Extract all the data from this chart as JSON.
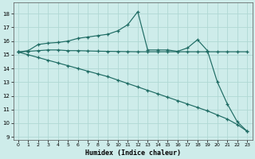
{
  "xlabel": "Humidex (Indice chaleur)",
  "xlim": [
    -0.5,
    23.5
  ],
  "ylim": [
    8.8,
    18.8
  ],
  "yticks": [
    9,
    10,
    11,
    12,
    13,
    14,
    15,
    16,
    17,
    18
  ],
  "xticks": [
    0,
    1,
    2,
    3,
    4,
    5,
    6,
    7,
    8,
    9,
    10,
    11,
    12,
    13,
    14,
    15,
    16,
    17,
    18,
    19,
    20,
    21,
    22,
    23
  ],
  "bg_color": "#ceecea",
  "grid_color": "#b0d8d4",
  "line_color": "#1e6b63",
  "series": [
    {
      "x": [
        0,
        1,
        2,
        3,
        4,
        5,
        6,
        7,
        8,
        9,
        10,
        11,
        12,
        13,
        14,
        15,
        16,
        17,
        18,
        19,
        20,
        21,
        22,
        23
      ],
      "y": [
        15.2,
        15.3,
        15.75,
        15.85,
        15.9,
        16.0,
        16.2,
        16.3,
        16.4,
        16.5,
        16.75,
        17.2,
        18.15,
        15.35,
        15.35,
        15.35,
        15.25,
        15.5,
        16.1,
        15.3,
        13.0,
        11.4,
        10.1,
        9.4
      ]
    },
    {
      "x": [
        0,
        1,
        2,
        3,
        4,
        5,
        6,
        7,
        8,
        9,
        10,
        11,
        12,
        13,
        14,
        15,
        16,
        17,
        18,
        19,
        20,
        21,
        22,
        23
      ],
      "y": [
        15.2,
        15.25,
        15.3,
        15.35,
        15.35,
        15.3,
        15.3,
        15.28,
        15.26,
        15.25,
        15.24,
        15.23,
        15.22,
        15.22,
        15.22,
        15.22,
        15.22,
        15.22,
        15.22,
        15.22,
        15.22,
        15.22,
        15.22,
        15.22
      ]
    },
    {
      "x": [
        0,
        1,
        2,
        3,
        4,
        5,
        6,
        7,
        8,
        9,
        10,
        11,
        12,
        13,
        14,
        15,
        16,
        17,
        18,
        19,
        20,
        21,
        22,
        23
      ],
      "y": [
        15.2,
        15.0,
        14.8,
        14.6,
        14.4,
        14.2,
        14.0,
        13.8,
        13.6,
        13.4,
        13.15,
        12.9,
        12.65,
        12.4,
        12.15,
        11.9,
        11.65,
        11.4,
        11.15,
        10.9,
        10.6,
        10.3,
        9.9,
        9.4
      ]
    }
  ]
}
